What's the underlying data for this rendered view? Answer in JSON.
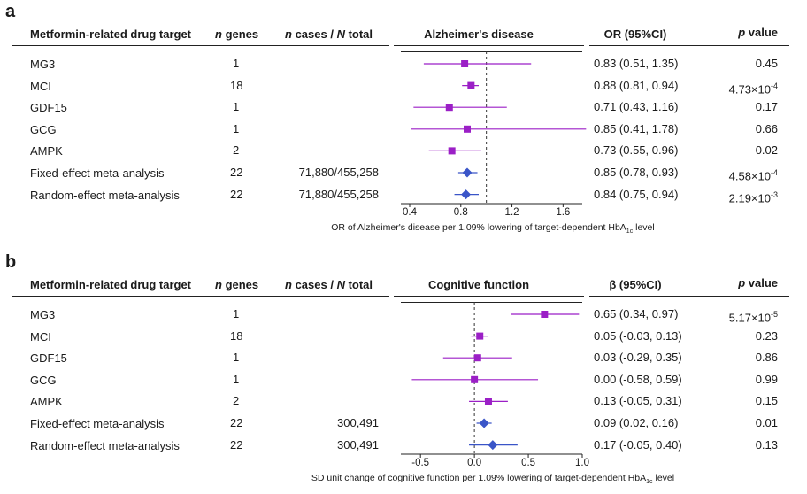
{
  "chart_data": [
    {
      "panel": "a",
      "type": "forest",
      "columns": {
        "target": "Metformin-related drug target",
        "genes_italic": "n",
        "genes_rest": " genes",
        "cases_italic1": "n",
        "cases_mid": " cases / ",
        "cases_italic2": "N",
        "cases_rest": " total",
        "plot_title": "Alzheimer's disease",
        "effect": "OR (95%CI)",
        "p_italic": "p",
        "p_rest": " value"
      },
      "null_value": 1,
      "xlim": [
        0.4,
        1.75
      ],
      "ticks": [
        0.4,
        0.8,
        1.2,
        1.6
      ],
      "tick_labels": [
        "0.4",
        "0.8",
        "1.2",
        "1.6"
      ],
      "xlabel_pre": "OR of Alzheimer's disease per 1.09% lowering of target-dependent HbA",
      "xlabel_sub": "1c",
      "xlabel_post": " level",
      "rows": [
        {
          "label": "MG3",
          "genes": "1",
          "cases": "",
          "est": 0.83,
          "lo": 0.51,
          "hi": 1.35,
          "ci_text": "0.83 (0.51, 1.35)",
          "p_base": "0.45",
          "p_exp": "",
          "shape": "square"
        },
        {
          "label": "MCI",
          "genes": "18",
          "cases": "",
          "est": 0.88,
          "lo": 0.81,
          "hi": 0.94,
          "ci_text": "0.88 (0.81, 0.94)",
          "p_base": "4.73×10",
          "p_exp": "-4",
          "shape": "square"
        },
        {
          "label": "GDF15",
          "genes": "1",
          "cases": "",
          "est": 0.71,
          "lo": 0.43,
          "hi": 1.16,
          "ci_text": "0.71 (0.43, 1.16)",
          "p_base": "0.17",
          "p_exp": "",
          "shape": "square"
        },
        {
          "label": "GCG",
          "genes": "1",
          "cases": "",
          "est": 0.85,
          "lo": 0.41,
          "hi": 1.78,
          "ci_text": "0.85 (0.41, 1.78)",
          "p_base": "0.66",
          "p_exp": "",
          "shape": "square"
        },
        {
          "label": "AMPK",
          "genes": "2",
          "cases": "",
          "est": 0.73,
          "lo": 0.55,
          "hi": 0.96,
          "ci_text": "0.73 (0.55, 0.96)",
          "p_base": "0.02",
          "p_exp": "",
          "shape": "square"
        },
        {
          "label": "Fixed-effect meta-analysis",
          "genes": "22",
          "cases": "71,880/455,258",
          "est": 0.85,
          "lo": 0.78,
          "hi": 0.93,
          "ci_text": "0.85 (0.78, 0.93)",
          "p_base": "4.58×10",
          "p_exp": "-4",
          "shape": "diamond"
        },
        {
          "label": "Random-effect meta-analysis",
          "genes": "22",
          "cases": "71,880/455,258",
          "est": 0.84,
          "lo": 0.75,
          "hi": 0.94,
          "ci_text": "0.84 (0.75, 0.94)",
          "p_base": "2.19×10",
          "p_exp": "-3",
          "shape": "diamond"
        }
      ]
    },
    {
      "panel": "b",
      "type": "forest",
      "columns": {
        "target": "Metformin-related drug target",
        "genes_italic": "n",
        "genes_rest": " genes",
        "cases_italic1": "n",
        "cases_mid": " cases / ",
        "cases_italic2": "N",
        "cases_rest": " total",
        "plot_title": "Cognitive function",
        "effect": "β (95%CI)",
        "p_italic": "p",
        "p_rest": " value"
      },
      "null_value": 0,
      "xlim": [
        -0.6,
        1.0
      ],
      "ticks": [
        -0.5,
        0.0,
        0.5,
        1.0
      ],
      "tick_labels": [
        "-0.5",
        "0.0",
        "0.5",
        "1.0"
      ],
      "xlabel_pre": "SD unit change of cognitive function per 1.09% lowering of target-dependent HbA",
      "xlabel_sub": "1c",
      "xlabel_post": " level",
      "rows": [
        {
          "label": "MG3",
          "genes": "1",
          "cases": "",
          "est": 0.65,
          "lo": 0.34,
          "hi": 0.97,
          "ci_text": "0.65 (0.34, 0.97)",
          "p_base": "5.17×10",
          "p_exp": "-5",
          "shape": "square"
        },
        {
          "label": "MCI",
          "genes": "18",
          "cases": "",
          "est": 0.05,
          "lo": -0.03,
          "hi": 0.13,
          "ci_text": "0.05 (-0.03, 0.13)",
          "p_base": "0.23",
          "p_exp": "",
          "shape": "square"
        },
        {
          "label": "GDF15",
          "genes": "1",
          "cases": "",
          "est": 0.03,
          "lo": -0.29,
          "hi": 0.35,
          "ci_text": "0.03 (-0.29, 0.35)",
          "p_base": "0.86",
          "p_exp": "",
          "shape": "square"
        },
        {
          "label": "GCG",
          "genes": "1",
          "cases": "",
          "est": 0.0,
          "lo": -0.58,
          "hi": 0.59,
          "ci_text": "0.00 (-0.58, 0.59)",
          "p_base": "0.99",
          "p_exp": "",
          "shape": "square"
        },
        {
          "label": "AMPK",
          "genes": "2",
          "cases": "",
          "est": 0.13,
          "lo": -0.05,
          "hi": 0.31,
          "ci_text": "0.13 (-0.05, 0.31)",
          "p_base": "0.15",
          "p_exp": "",
          "shape": "square"
        },
        {
          "label": "Fixed-effect meta-analysis",
          "genes": "22",
          "cases": "300,491",
          "est": 0.09,
          "lo": 0.02,
          "hi": 0.16,
          "ci_text": "0.09 (0.02, 0.16)",
          "p_base": "0.01",
          "p_exp": "",
          "shape": "diamond"
        },
        {
          "label": "Random-effect meta-analysis",
          "genes": "22",
          "cases": "300,491",
          "est": 0.17,
          "lo": -0.05,
          "hi": 0.4,
          "ci_text": "0.17 (-0.05, 0.40)",
          "p_base": "0.13",
          "p_exp": "",
          "shape": "diamond"
        }
      ]
    }
  ],
  "panel_labels": [
    "a",
    "b"
  ],
  "colors": {
    "square": "#9b1fc6",
    "diamond": "#3a55c8",
    "ci_line": "#9b1fc6",
    "meta_ci_line": "#3a55c8",
    "text": "#1a1a1a"
  }
}
